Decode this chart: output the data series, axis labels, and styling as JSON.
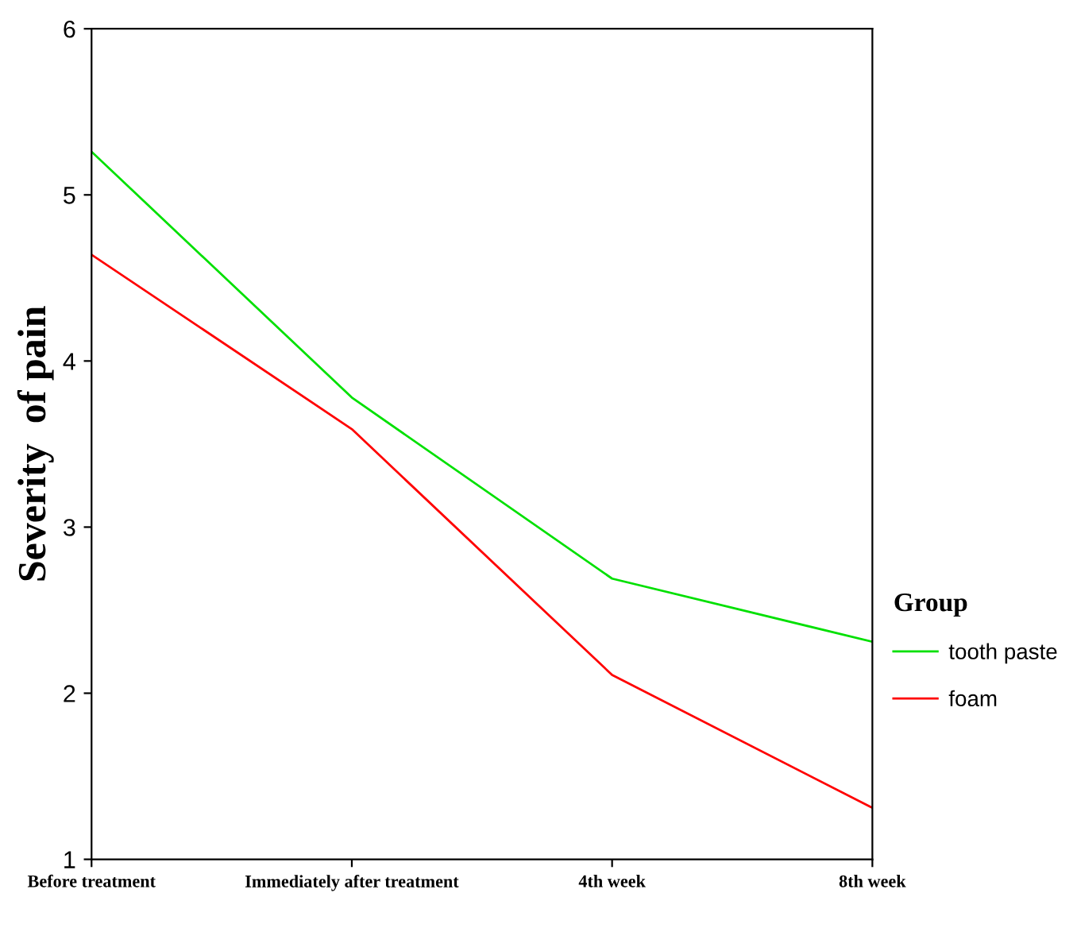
{
  "chart_data": {
    "type": "line",
    "ylabel": "Severity  of pain",
    "legend_title": "Group",
    "categories": [
      "Before treatment",
      "Immediately after treatment",
      "4th week",
      "8th week"
    ],
    "series": [
      {
        "name": "tooth paste",
        "color": "#00e000",
        "values": [
          5.26,
          3.78,
          2.69,
          2.31
        ]
      },
      {
        "name": "foam",
        "color": "#ff0000",
        "values": [
          4.64,
          3.59,
          2.11,
          1.31
        ]
      }
    ],
    "ylim": [
      1,
      6
    ],
    "yticks": [
      1,
      2,
      3,
      4,
      5,
      6
    ],
    "grid": false,
    "legend": "right",
    "marker": "none",
    "line_style": "solid"
  }
}
